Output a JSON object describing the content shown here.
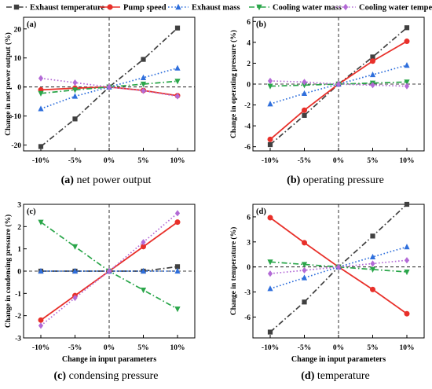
{
  "legend": [
    {
      "name": "Exhaust temperature",
      "color": "#404040",
      "marker": "square",
      "dash": "dashdot"
    },
    {
      "name": "Pump speed",
      "color": "#e8302a",
      "marker": "circle",
      "dash": "solid"
    },
    {
      "name": "Exhaust mass",
      "color": "#2f6fdc",
      "marker": "triangle-up",
      "dash": "dot"
    },
    {
      "name": "Cooling water mass",
      "color": "#2aa64a",
      "marker": "triangle-down",
      "dash": "dashdot"
    },
    {
      "name": "Cooling water temperature",
      "color": "#b36ad6",
      "marker": "diamond",
      "dash": "dot"
    }
  ],
  "chart_data": [
    {
      "type": "line",
      "panel_label": "(a)",
      "caption_letter": "(a)",
      "caption_text": " net power output",
      "ylabel": "Change in net power output (%)",
      "xlabel": "",
      "categories": [
        "-10%",
        "-5%",
        "0%",
        "5%",
        "10%"
      ],
      "ylim": [
        -22,
        24
      ],
      "yticks": [
        -20,
        -10,
        0,
        10,
        20
      ],
      "series": [
        {
          "name": "Exhaust temperature",
          "values": [
            -20.5,
            -11.0,
            0,
            9.5,
            20.3
          ]
        },
        {
          "name": "Pump speed",
          "values": [
            -1.0,
            -0.4,
            0,
            -1.2,
            -3.0
          ]
        },
        {
          "name": "Exhaust mass",
          "values": [
            -7.5,
            -3.2,
            0,
            3.2,
            6.5
          ]
        },
        {
          "name": "Cooling water mass",
          "values": [
            -2.2,
            -1.0,
            0,
            1.0,
            2.0
          ]
        },
        {
          "name": "Cooling water temperature",
          "values": [
            3.0,
            1.5,
            0,
            -1.3,
            -3.2
          ]
        }
      ]
    },
    {
      "type": "line",
      "panel_label": "(b)",
      "caption_letter": "(b)",
      "caption_text": " operating pressure",
      "ylabel": "Change in operating pressure (%)",
      "xlabel": "",
      "categories": [
        "-10%",
        "-5%",
        "0%",
        "5%",
        "10%"
      ],
      "ylim": [
        -6.4,
        6.4
      ],
      "yticks": [
        -6,
        -4,
        -2,
        0,
        2,
        4,
        6
      ],
      "series": [
        {
          "name": "Exhaust temperature",
          "values": [
            -5.8,
            -3.0,
            0,
            2.6,
            5.4
          ]
        },
        {
          "name": "Pump speed",
          "values": [
            -5.3,
            -2.5,
            0,
            2.2,
            4.1
          ]
        },
        {
          "name": "Exhaust mass",
          "values": [
            -1.9,
            -0.9,
            0,
            0.9,
            1.8
          ]
        },
        {
          "name": "Cooling water mass",
          "values": [
            -0.2,
            -0.1,
            0,
            0.1,
            0.2
          ]
        },
        {
          "name": "Cooling water temperature",
          "values": [
            0.3,
            0.2,
            0,
            -0.1,
            -0.2
          ]
        }
      ]
    },
    {
      "type": "line",
      "panel_label": "(c)",
      "caption_letter": "(c)",
      "caption_text": " condensing pressure",
      "ylabel": "Change in condensing pressure (%)",
      "xlabel": "Change in input parameters",
      "categories": [
        "-10%",
        "-5%",
        "0%",
        "5%",
        "10%"
      ],
      "ylim": [
        -3.0,
        3.0
      ],
      "yticks": [
        -3,
        -2,
        -1,
        0,
        1,
        2,
        3
      ],
      "series": [
        {
          "name": "Exhaust temperature",
          "values": [
            0.0,
            0.0,
            0,
            0.0,
            0.2
          ]
        },
        {
          "name": "Pump speed",
          "values": [
            -2.2,
            -1.1,
            0,
            1.1,
            2.2
          ]
        },
        {
          "name": "Exhaust mass",
          "values": [
            0.0,
            0.0,
            0,
            0.0,
            0.0
          ]
        },
        {
          "name": "Cooling water mass",
          "values": [
            2.2,
            1.1,
            0,
            -0.85,
            -1.7
          ]
        },
        {
          "name": "Cooling water temperature",
          "values": [
            -2.45,
            -1.2,
            0,
            1.3,
            2.6
          ]
        }
      ]
    },
    {
      "type": "line",
      "panel_label": "(d)",
      "caption_letter": "(d)",
      "caption_text": " temperature",
      "ylabel": "Change in temperature (%)",
      "xlabel": "Change in input parameters",
      "categories": [
        "-10%",
        "-5%",
        "0%",
        "5%",
        "10%"
      ],
      "ylim": [
        -8.5,
        7.5
      ],
      "yticks": [
        -6,
        -3,
        0,
        3,
        6
      ],
      "series": [
        {
          "name": "Exhaust temperature",
          "values": [
            -7.8,
            -4.2,
            0,
            3.7,
            7.5
          ]
        },
        {
          "name": "Pump speed",
          "values": [
            5.9,
            2.9,
            0,
            -2.7,
            -5.6
          ]
        },
        {
          "name": "Exhaust mass",
          "values": [
            -2.6,
            -1.3,
            0,
            1.2,
            2.4
          ]
        },
        {
          "name": "Cooling water mass",
          "values": [
            0.6,
            0.3,
            0,
            -0.3,
            -0.6
          ]
        },
        {
          "name": "Cooling water temperature",
          "values": [
            -0.8,
            -0.4,
            0,
            0.4,
            0.8
          ]
        }
      ]
    }
  ]
}
